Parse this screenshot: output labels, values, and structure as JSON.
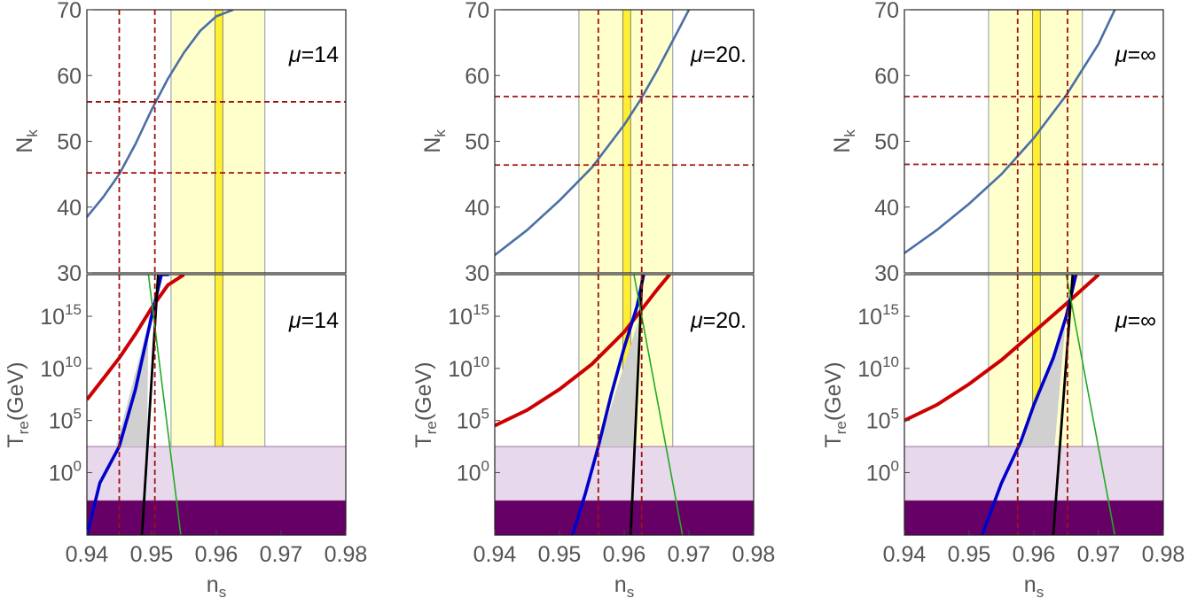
{
  "figure": {
    "type": "multi-panel physics plot",
    "panel_count": 3
  },
  "chart_data": [
    {
      "type": "line",
      "panel": "left",
      "mu_label_prefix": "μ",
      "mu_label_value": "=14",
      "top": {
        "ylabel_main": "N",
        "ylabel_sub": "k",
        "ylim": [
          30,
          70
        ],
        "yticks": [
          "30",
          "40",
          "50",
          "60",
          "70"
        ],
        "series": [
          {
            "color": "#4a6fa5",
            "x": [
              0.94,
              0.9425,
              0.945,
              0.9475,
              0.95,
              0.9525,
              0.955,
              0.9575,
              0.96,
              0.9626
            ],
            "y": [
              38.5,
              41.5,
              45.0,
              49.6,
              54.8,
              59.5,
              63.5,
              66.8,
              69.0,
              70.0
            ]
          }
        ],
        "hlines": [
          56.0,
          45.2
        ]
      },
      "bottom": {
        "ylabel_main": "T",
        "ylabel_sub": "re",
        "ylabel_unit": "(GeV)",
        "ylim": [
          -6,
          19
        ],
        "yticks": [
          {
            "base": "10",
            "exp": "0",
            "value": 0
          },
          {
            "base": "10",
            "exp": "5",
            "value": 5
          },
          {
            "base": "10",
            "exp": "10",
            "value": 10
          },
          {
            "base": "10",
            "exp": "15",
            "value": 15
          }
        ],
        "red_curve": {
          "x": [
            0.94,
            0.9425,
            0.945,
            0.9475,
            0.95,
            0.9525,
            0.955
          ],
          "y": [
            7.0,
            9.0,
            11.0,
            13.3,
            15.8,
            18.0,
            19.0
          ]
        },
        "blue_curve": {
          "x": [
            0.94,
            0.942,
            0.945,
            0.9475,
            0.95,
            0.9515,
            0.9527
          ],
          "y": [
            -6.0,
            -1.0,
            2.5,
            8.0,
            15.0,
            19.0,
            19.0
          ]
        },
        "black_line": {
          "x": [
            0.9485,
            0.951
          ],
          "y": [
            -6.0,
            19.0
          ]
        },
        "green_line": {
          "x": [
            0.9495,
            0.9545
          ],
          "y": [
            19.0,
            -6.0
          ]
        },
        "gray_region": {
          "x": [
            0.9445,
            0.9493,
            0.9495,
            0.9498
          ],
          "y": [
            2.5,
            2.5,
            15.0,
            15.0
          ]
        },
        "bbn_light_max": 2.5,
        "bbn_dark_max": -2.7
      },
      "vlines": [
        0.945,
        0.9505
      ],
      "yellow_band_wide": [
        0.953,
        0.9675
      ],
      "yellow_band_narrow": [
        0.9598,
        0.961
      ],
      "xlim": [
        0.94,
        0.98
      ]
    },
    {
      "type": "line",
      "panel": "middle",
      "mu_label_prefix": "μ",
      "mu_label_value": "=20.",
      "top": {
        "ylabel_main": "N",
        "ylabel_sub": "k",
        "ylim": [
          30,
          70
        ],
        "yticks": [
          "30",
          "40",
          "50",
          "60",
          "70"
        ],
        "series": [
          {
            "color": "#4a6fa5",
            "x": [
              0.94,
              0.945,
              0.95,
              0.955,
              0.96,
              0.9625,
              0.965,
              0.9675,
              0.97
            ],
            "y": [
              32.7,
              36.5,
              41.0,
              46.0,
              52.5,
              56.3,
              60.6,
              65.3,
              70.0
            ]
          }
        ],
        "hlines": [
          56.8,
          46.4
        ]
      },
      "bottom": {
        "ylabel_main": "T",
        "ylabel_sub": "re",
        "ylabel_unit": "(GeV)",
        "ylim": [
          -6,
          19
        ],
        "yticks": [
          {
            "base": "10",
            "exp": "0",
            "value": 0
          },
          {
            "base": "10",
            "exp": "5",
            "value": 5
          },
          {
            "base": "10",
            "exp": "10",
            "value": 10
          },
          {
            "base": "10",
            "exp": "15",
            "value": 15
          }
        ],
        "red_curve": {
          "x": [
            0.94,
            0.945,
            0.95,
            0.955,
            0.96,
            0.9625,
            0.965,
            0.967
          ],
          "y": [
            4.5,
            6.0,
            8.0,
            10.4,
            13.5,
            15.5,
            17.5,
            19.0
          ]
        },
        "blue_curve": {
          "x": [
            0.952,
            0.954,
            0.956,
            0.958,
            0.96,
            0.962,
            0.963
          ],
          "y": [
            -6.0,
            -2.0,
            2.5,
            7.5,
            12.0,
            16.0,
            19.0
          ]
        },
        "black_line": {
          "x": [
            0.961,
            0.9628
          ],
          "y": [
            -6.0,
            19.0
          ]
        },
        "green_line": {
          "x": [
            0.9615,
            0.969
          ],
          "y": [
            19.0,
            -6.0
          ]
        },
        "gray_region": {
          "x": [
            0.956,
            0.9614,
            0.9622,
            0.9625
          ],
          "y": [
            2.5,
            2.5,
            15.2,
            15.2
          ]
        },
        "bbn_light_max": 2.5,
        "bbn_dark_max": -2.7
      },
      "vlines": [
        0.956,
        0.9627
      ],
      "yellow_band_wide": [
        0.953,
        0.9675
      ],
      "yellow_band_narrow": [
        0.9598,
        0.961
      ],
      "xlim": [
        0.94,
        0.98
      ]
    },
    {
      "type": "line",
      "panel": "right",
      "mu_label_prefix": "μ",
      "mu_label_value": "=∞",
      "top": {
        "ylabel_main": "N",
        "ylabel_sub": "k",
        "ylim": [
          30,
          70
        ],
        "yticks": [
          "30",
          "40",
          "50",
          "60",
          "70"
        ],
        "series": [
          {
            "color": "#4a6fa5",
            "x": [
              0.94,
              0.945,
              0.95,
              0.955,
              0.96,
              0.965,
              0.97,
              0.9725
            ],
            "y": [
              33.0,
              36.5,
              40.5,
              45.0,
              50.5,
              57.0,
              64.8,
              70.0
            ]
          }
        ],
        "hlines": [
          56.8,
          46.5
        ]
      },
      "bottom": {
        "ylabel_main": "T",
        "ylabel_sub": "re",
        "ylabel_unit": "(GeV)",
        "ylim": [
          -6,
          19
        ],
        "yticks": [
          {
            "base": "10",
            "exp": "0",
            "value": 0
          },
          {
            "base": "10",
            "exp": "5",
            "value": 5
          },
          {
            "base": "10",
            "exp": "10",
            "value": 10
          },
          {
            "base": "10",
            "exp": "15",
            "value": 15
          }
        ],
        "red_curve": {
          "x": [
            0.94,
            0.945,
            0.95,
            0.955,
            0.96,
            0.965,
            0.97
          ],
          "y": [
            5.0,
            6.5,
            8.5,
            10.8,
            13.5,
            16.2,
            19.0
          ]
        },
        "blue_curve": {
          "x": [
            0.952,
            0.955,
            0.958,
            0.96,
            0.963,
            0.965,
            0.9665
          ],
          "y": [
            -6.0,
            -1.0,
            3.0,
            6.5,
            11.0,
            15.0,
            19.0
          ]
        },
        "black_line": {
          "x": [
            0.963,
            0.966
          ],
          "y": [
            -6.0,
            19.0
          ]
        },
        "green_line": {
          "x": [
            0.965,
            0.9725
          ],
          "y": [
            19.0,
            -6.0
          ]
        },
        "gray_region": {
          "x": [
            0.9575,
            0.9632,
            0.965,
            0.9652
          ],
          "y": [
            2.5,
            2.5,
            15.2,
            15.2
          ]
        },
        "bbn_light_max": 2.5,
        "bbn_dark_max": -2.7
      },
      "vlines": [
        0.9575,
        0.9652
      ],
      "yellow_band_wide": [
        0.953,
        0.9675
      ],
      "yellow_band_narrow": [
        0.9598,
        0.961
      ],
      "xlim": [
        0.94,
        0.98
      ]
    }
  ],
  "xaxis": {
    "label_main": "n",
    "label_sub": "s",
    "ticks": [
      "0.94",
      "0.95",
      "0.96",
      "0.97",
      "0.98"
    ]
  },
  "colors": {
    "blue_curve": "#0000cc",
    "red_curve": "#cc0000",
    "black_line": "#000000",
    "green_line": "#22aa22",
    "dashed": "#a01010",
    "yellow_band": "#ffffcc",
    "yellow_narrow": "#ffee33",
    "gray_region": "#d0d0d0",
    "bbn_light": "#e8d8ec",
    "bbn_dark": "#660066",
    "top_curve": "#4a6fa5"
  }
}
